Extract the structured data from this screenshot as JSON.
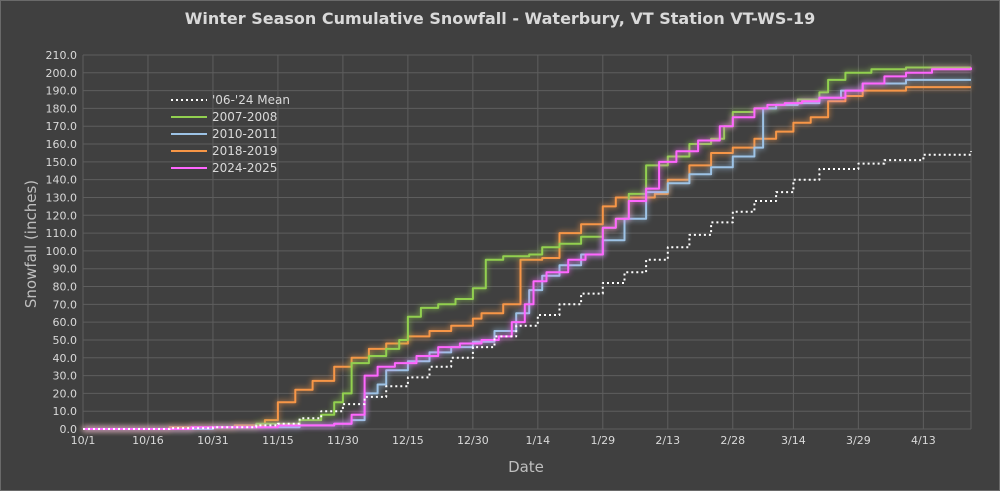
{
  "chart_data": {
    "type": "line",
    "title": "Winter Season Cumulative Snowfall - Waterbury, VT Station VT-WS-19",
    "xlabel": "Date",
    "ylabel": "Snowfall (inches)",
    "ylim": [
      0,
      210
    ],
    "xlim_days": [
      0,
      205
    ],
    "yticks": [
      "0.0",
      "10.0",
      "20.0",
      "30.0",
      "40.0",
      "50.0",
      "60.0",
      "70.0",
      "80.0",
      "90.0",
      "100.0",
      "110.0",
      "120.0",
      "130.0",
      "140.0",
      "150.0",
      "160.0",
      "170.0",
      "180.0",
      "190.0",
      "200.0",
      "210.0"
    ],
    "xticks": [
      {
        "label": "10/1",
        "day": 0
      },
      {
        "label": "10/16",
        "day": 15
      },
      {
        "label": "10/31",
        "day": 30
      },
      {
        "label": "11/15",
        "day": 45
      },
      {
        "label": "11/30",
        "day": 60
      },
      {
        "label": "12/15",
        "day": 75
      },
      {
        "label": "12/30",
        "day": 90
      },
      {
        "label": "1/14",
        "day": 105
      },
      {
        "label": "1/29",
        "day": 120
      },
      {
        "label": "2/13",
        "day": 135
      },
      {
        "label": "2/28",
        "day": 150
      },
      {
        "label": "3/14",
        "day": 164
      },
      {
        "label": "3/29",
        "day": 179
      },
      {
        "label": "4/13",
        "day": 194
      }
    ],
    "grid": true,
    "legend_position": "upper-left",
    "series": [
      {
        "name": "'06-'24 Mean",
        "color": "#ffffff",
        "style": "dotted",
        "points": [
          [
            0,
            0
          ],
          [
            20,
            0.5
          ],
          [
            30,
            1
          ],
          [
            40,
            2
          ],
          [
            45,
            3
          ],
          [
            50,
            6
          ],
          [
            55,
            10
          ],
          [
            60,
            14
          ],
          [
            65,
            18
          ],
          [
            70,
            24
          ],
          [
            75,
            29
          ],
          [
            80,
            35
          ],
          [
            85,
            40
          ],
          [
            90,
            46
          ],
          [
            95,
            52
          ],
          [
            100,
            58
          ],
          [
            105,
            64
          ],
          [
            110,
            70
          ],
          [
            115,
            76
          ],
          [
            120,
            82
          ],
          [
            125,
            88
          ],
          [
            130,
            95
          ],
          [
            135,
            102
          ],
          [
            140,
            109
          ],
          [
            145,
            116
          ],
          [
            150,
            122
          ],
          [
            155,
            128
          ],
          [
            160,
            133
          ],
          [
            164,
            140
          ],
          [
            170,
            146
          ],
          [
            179,
            149
          ],
          [
            185,
            151
          ],
          [
            194,
            154
          ],
          [
            205,
            156
          ]
        ]
      },
      {
        "name": "2007-2008",
        "color": "#92d050",
        "style": "solid",
        "points": [
          [
            0,
            0
          ],
          [
            25,
            1
          ],
          [
            40,
            3
          ],
          [
            50,
            5
          ],
          [
            55,
            8
          ],
          [
            58,
            15
          ],
          [
            60,
            20
          ],
          [
            62,
            37
          ],
          [
            66,
            41
          ],
          [
            70,
            45
          ],
          [
            73,
            50
          ],
          [
            75,
            63
          ],
          [
            78,
            68
          ],
          [
            82,
            70
          ],
          [
            86,
            73
          ],
          [
            90,
            79
          ],
          [
            93,
            95
          ],
          [
            97,
            97
          ],
          [
            103,
            98
          ],
          [
            106,
            102
          ],
          [
            110,
            104
          ],
          [
            115,
            108
          ],
          [
            120,
            113
          ],
          [
            123,
            118
          ],
          [
            126,
            132
          ],
          [
            130,
            148
          ],
          [
            135,
            153
          ],
          [
            140,
            160
          ],
          [
            145,
            163
          ],
          [
            148,
            170
          ],
          [
            150,
            178
          ],
          [
            155,
            180
          ],
          [
            160,
            182
          ],
          [
            165,
            185
          ],
          [
            170,
            189
          ],
          [
            172,
            196
          ],
          [
            176,
            200
          ],
          [
            182,
            202
          ],
          [
            190,
            203
          ],
          [
            205,
            203
          ]
        ]
      },
      {
        "name": "2010-2011",
        "color": "#9dc3e6",
        "style": "solid",
        "points": [
          [
            0,
            0
          ],
          [
            30,
            1
          ],
          [
            50,
            2
          ],
          [
            58,
            3
          ],
          [
            62,
            5
          ],
          [
            65,
            20
          ],
          [
            68,
            25
          ],
          [
            70,
            33
          ],
          [
            75,
            38
          ],
          [
            80,
            43
          ],
          [
            85,
            46
          ],
          [
            90,
            49
          ],
          [
            95,
            55
          ],
          [
            100,
            65
          ],
          [
            103,
            78
          ],
          [
            106,
            86
          ],
          [
            110,
            92
          ],
          [
            115,
            98
          ],
          [
            120,
            106
          ],
          [
            125,
            118
          ],
          [
            130,
            133
          ],
          [
            135,
            138
          ],
          [
            140,
            143
          ],
          [
            145,
            147
          ],
          [
            150,
            153
          ],
          [
            155,
            158
          ],
          [
            157,
            180
          ],
          [
            160,
            182
          ],
          [
            165,
            183
          ],
          [
            170,
            186
          ],
          [
            175,
            190
          ],
          [
            180,
            194
          ],
          [
            190,
            196
          ],
          [
            205,
            196
          ]
        ]
      },
      {
        "name": "2018-2019",
        "color": "#f79646",
        "style": "solid",
        "points": [
          [
            0,
            0
          ],
          [
            20,
            1
          ],
          [
            35,
            2
          ],
          [
            42,
            5
          ],
          [
            45,
            15
          ],
          [
            49,
            22
          ],
          [
            53,
            27
          ],
          [
            58,
            35
          ],
          [
            62,
            40
          ],
          [
            66,
            45
          ],
          [
            70,
            48
          ],
          [
            75,
            52
          ],
          [
            80,
            55
          ],
          [
            85,
            58
          ],
          [
            90,
            62
          ],
          [
            92,
            65
          ],
          [
            97,
            70
          ],
          [
            101,
            95
          ],
          [
            106,
            96
          ],
          [
            110,
            110
          ],
          [
            115,
            115
          ],
          [
            120,
            125
          ],
          [
            123,
            130
          ],
          [
            127,
            130
          ],
          [
            132,
            132
          ],
          [
            135,
            140
          ],
          [
            140,
            148
          ],
          [
            145,
            155
          ],
          [
            150,
            158
          ],
          [
            155,
            163
          ],
          [
            160,
            167
          ],
          [
            164,
            172
          ],
          [
            168,
            175
          ],
          [
            172,
            184
          ],
          [
            176,
            187
          ],
          [
            180,
            190
          ],
          [
            190,
            192
          ],
          [
            205,
            192
          ]
        ]
      },
      {
        "name": "2024-2025",
        "color": "#ff66ff",
        "style": "solid",
        "points": [
          [
            0,
            0
          ],
          [
            25,
            1
          ],
          [
            45,
            2
          ],
          [
            58,
            3
          ],
          [
            62,
            8
          ],
          [
            65,
            30
          ],
          [
            68,
            35
          ],
          [
            72,
            37
          ],
          [
            77,
            41
          ],
          [
            82,
            46
          ],
          [
            87,
            48
          ],
          [
            92,
            50
          ],
          [
            96,
            52
          ],
          [
            99,
            60
          ],
          [
            102,
            70
          ],
          [
            104,
            83
          ],
          [
            107,
            88
          ],
          [
            112,
            95
          ],
          [
            116,
            98
          ],
          [
            120,
            113
          ],
          [
            123,
            118
          ],
          [
            126,
            128
          ],
          [
            130,
            135
          ],
          [
            133,
            150
          ],
          [
            137,
            156
          ],
          [
            142,
            162
          ],
          [
            147,
            170
          ],
          [
            150,
            175
          ],
          [
            155,
            180
          ],
          [
            158,
            182
          ],
          [
            162,
            183
          ],
          [
            166,
            184
          ],
          [
            170,
            186
          ],
          [
            176,
            190
          ],
          [
            180,
            194
          ],
          [
            185,
            198
          ],
          [
            190,
            200
          ],
          [
            196,
            202
          ],
          [
            205,
            203
          ]
        ]
      }
    ]
  }
}
